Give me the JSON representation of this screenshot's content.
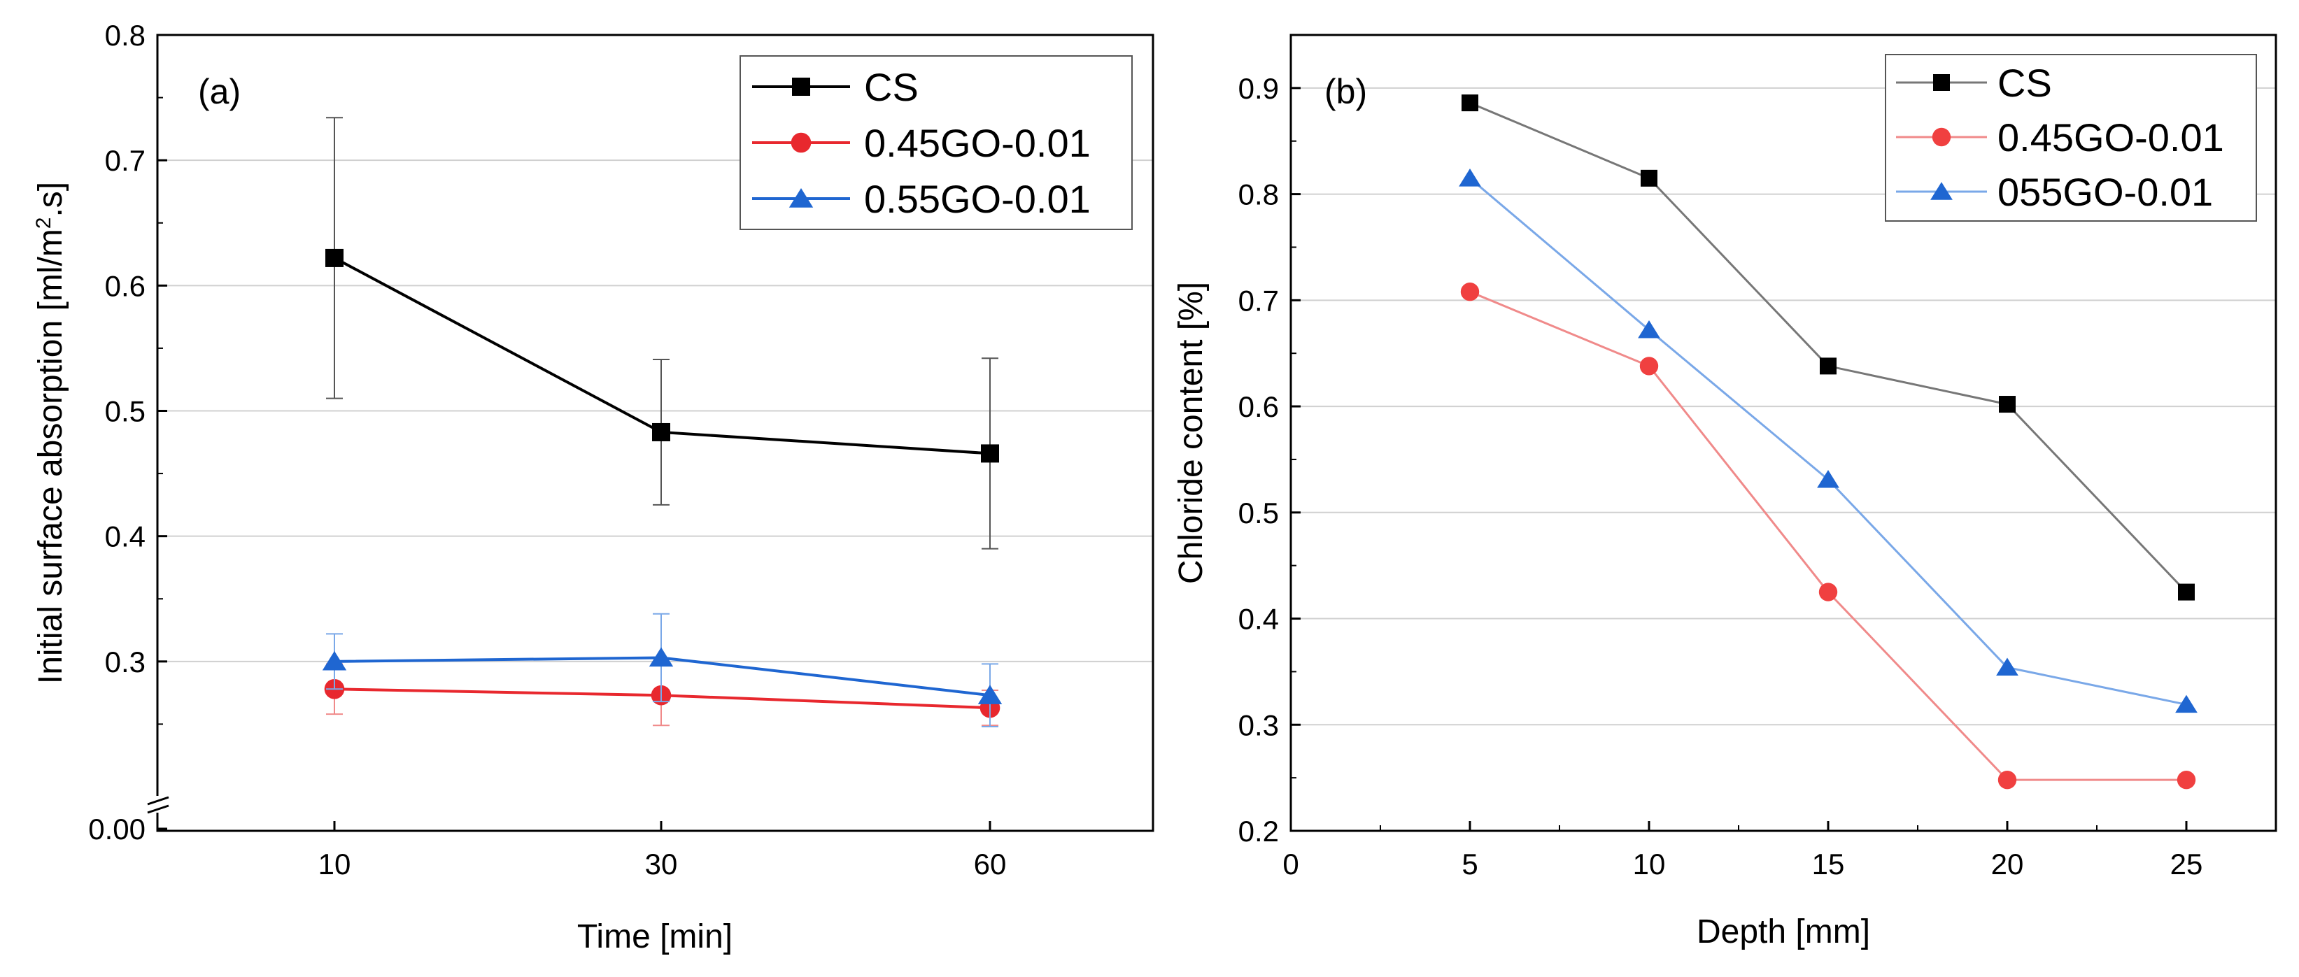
{
  "chart_data": [
    {
      "type": "line",
      "panel_label": "(a)",
      "xlabel": "Time [min]",
      "ylabel": "Initial surface absorption [ml/m",
      "ylabel_sup": "2",
      "ylabel_tail": ".s]",
      "categories": [
        "10",
        "30",
        "60"
      ],
      "ylim": [
        0.2,
        0.8
      ],
      "axis_break_label": "0.00",
      "yticks": [
        "0.3",
        "0.4",
        "0.5",
        "0.6",
        "0.7",
        "0.8"
      ],
      "grid": true,
      "legend_position": "top-right",
      "series": [
        {
          "name": "CS",
          "color": "#000000",
          "marker": "square",
          "values": [
            0.622,
            0.483,
            0.466
          ],
          "err": [
            0.112,
            0.058,
            0.076
          ]
        },
        {
          "name": "0.45GO-0.01",
          "color": "#e8282e",
          "marker": "circle",
          "values": [
            0.278,
            0.273,
            0.263
          ],
          "err": [
            0.02,
            0.024,
            0.014
          ]
        },
        {
          "name": "0.55GO-0.01",
          "color": "#1f66d1",
          "marker": "triangle",
          "values": [
            0.3,
            0.303,
            0.273
          ],
          "err": [
            0.022,
            0.035,
            0.025
          ]
        }
      ]
    },
    {
      "type": "line",
      "panel_label": "(b)",
      "xlabel": "Depth [mm]",
      "ylabel": "Chloride content [%]",
      "xlim": [
        0,
        27.5
      ],
      "xticks": [
        "0",
        "5",
        "10",
        "15",
        "20",
        "25"
      ],
      "ylim": [
        0.2,
        0.95
      ],
      "yticks": [
        "0.2",
        "0.3",
        "0.4",
        "0.5",
        "0.6",
        "0.7",
        "0.8",
        "0.9"
      ],
      "grid": true,
      "legend_position": "top-right",
      "x": [
        5,
        10,
        15,
        20,
        25
      ],
      "series": [
        {
          "name": "CS",
          "color": "#000000",
          "line_color": "#777777",
          "marker": "square",
          "values": [
            0.886,
            0.815,
            0.638,
            0.602,
            0.425
          ]
        },
        {
          "name": "0.45GO-0.01",
          "color": "#f04040",
          "line_color": "#f08a8a",
          "marker": "circle",
          "values": [
            0.708,
            0.638,
            0.425,
            0.248,
            0.248
          ]
        },
        {
          "name": "055GO-0.01",
          "color": "#1f66d1",
          "line_color": "#7aa8e8",
          "marker": "triangle",
          "values": [
            0.815,
            0.672,
            0.531,
            0.354,
            0.319
          ]
        }
      ]
    }
  ]
}
